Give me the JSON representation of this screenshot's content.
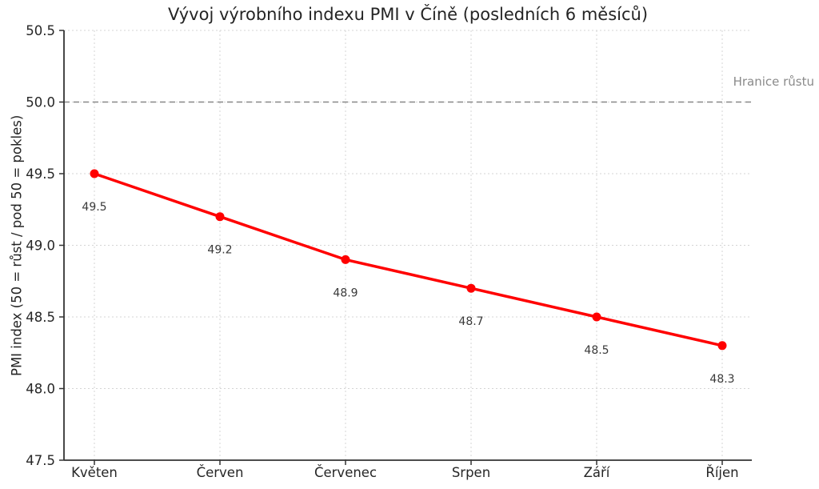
{
  "chart_data": {
    "type": "line",
    "title": "Vývoj výrobního indexu PMI v Číně (posledních 6 měsíců)",
    "ylabel": "PMI index (50 = růst / pod 50 = pokles)",
    "xlabel": "",
    "categories": [
      "Květen",
      "Červen",
      "Červenec",
      "Srpen",
      "Září",
      "Říjen"
    ],
    "series": [
      {
        "name": "PMI",
        "values": [
          49.5,
          49.2,
          48.9,
          48.7,
          48.5,
          48.3
        ],
        "color": "#ff0000"
      }
    ],
    "point_labels": [
      "49.5",
      "49.2",
      "48.9",
      "48.7",
      "48.5",
      "48.3"
    ],
    "ylim": [
      47.5,
      50.5
    ],
    "yticks": [
      47.5,
      48.0,
      48.5,
      49.0,
      49.5,
      50.0,
      50.5
    ],
    "ytick_labels": [
      "47.5",
      "48.0",
      "48.5",
      "49.0",
      "49.5",
      "50.0",
      "50.5"
    ],
    "grid": true,
    "legend": "none",
    "threshold": {
      "value": 50.0,
      "label": "Hranice růstu",
      "color": "#888888"
    },
    "colors": {
      "line": "#ff0000",
      "grid": "#d4d4d4",
      "spine": "#333333",
      "tick_text": "#262626",
      "point_label_text": "#3a3a3a",
      "annotation_text": "#8a8a8a",
      "background": "#ffffff"
    }
  }
}
